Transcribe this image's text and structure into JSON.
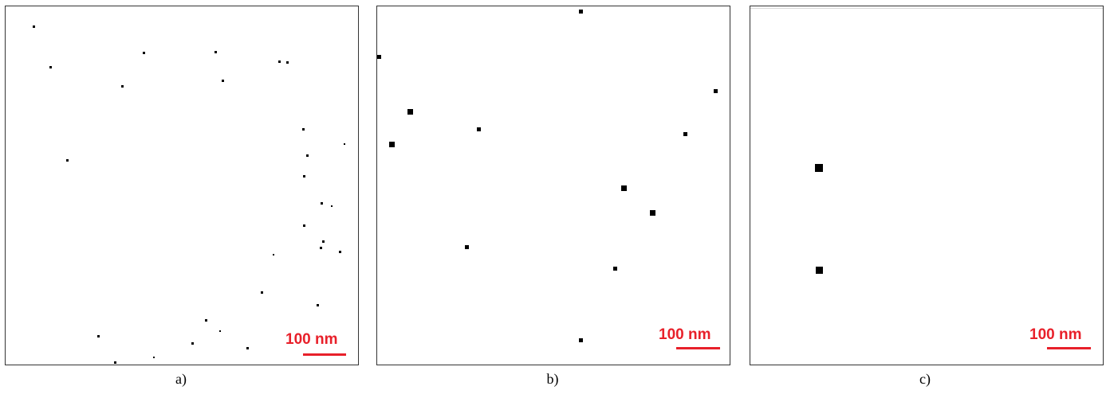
{
  "colors": {
    "scale_bar": "#e8202a",
    "particle": "#000000",
    "border": "#333333"
  },
  "panels": [
    {
      "id": "a",
      "caption": "a)",
      "scale_label": "100 nm"
    },
    {
      "id": "b",
      "caption": "b)",
      "scale_label": "100 nm"
    },
    {
      "id": "c",
      "caption": "c)",
      "scale_label": "100 nm"
    }
  ]
}
